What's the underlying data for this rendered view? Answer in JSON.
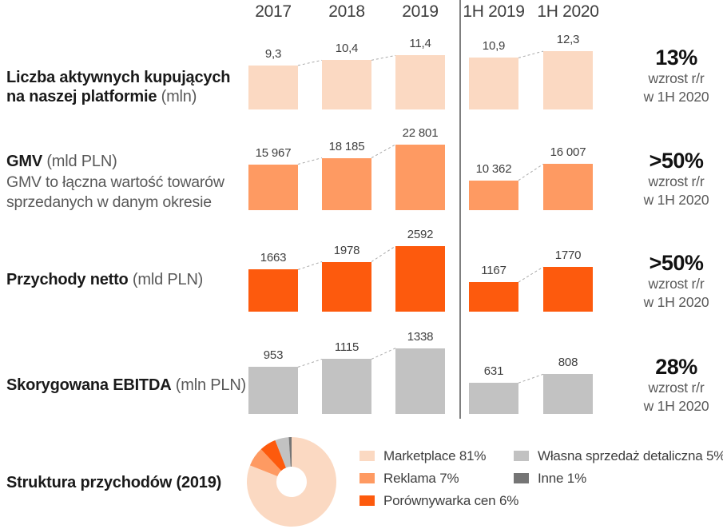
{
  "header": {
    "columns": [
      "2017",
      "2018",
      "2019",
      "1H 2019",
      "1H 2020"
    ]
  },
  "chart_data": [
    {
      "type": "bar",
      "id": "active-buyers",
      "title_bold": "Liczba aktywnych kupujących na naszej platformie",
      "title_unit": " (mln)",
      "subtitle": "",
      "categories": [
        "2017",
        "2018",
        "2019",
        "1H 2019",
        "1H 2020"
      ],
      "values": [
        9.3,
        10.4,
        11.4,
        10.9,
        12.3
      ],
      "value_labels": [
        "9,3",
        "10,4",
        "11,4",
        "10,9",
        "12,3"
      ],
      "bar_color": "#fbd9c2",
      "growth_pct": "13%",
      "growth_line1": "wzrost r/r",
      "growth_line2": "w 1H 2020"
    },
    {
      "type": "bar",
      "id": "gmv",
      "title_bold": "GMV",
      "title_unit": " (mld PLN)",
      "subtitle": "GMV to łączna wartość towarów sprzedanych w danym okresie",
      "categories": [
        "2017",
        "2018",
        "2019",
        "1H 2019",
        "1H 2020"
      ],
      "values": [
        15967,
        18185,
        22801,
        10362,
        16007
      ],
      "value_labels": [
        "15 967",
        "18 185",
        "22 801",
        "10 362",
        "16 007"
      ],
      "bar_color": "#fe9a62",
      "growth_pct": ">50%",
      "growth_line1": "wzrost r/r",
      "growth_line2": "w 1H 2020"
    },
    {
      "type": "bar",
      "id": "net-revenue",
      "title_bold": "Przychody netto",
      "title_unit": " (mld PLN)",
      "subtitle": "",
      "categories": [
        "2017",
        "2018",
        "2019",
        "1H 2019",
        "1H 2020"
      ],
      "values": [
        1663,
        1978,
        2592,
        1167,
        1770
      ],
      "value_labels": [
        "1663",
        "1978",
        "2592",
        "1167",
        "1770"
      ],
      "bar_color": "#fd5a0d",
      "growth_pct": ">50%",
      "growth_line1": "wzrost r/r",
      "growth_line2": "w 1H 2020"
    },
    {
      "type": "bar",
      "id": "adjusted-ebitda",
      "title_bold": "Skorygowana EBITDA",
      "title_unit": " (mln PLN)",
      "subtitle": "",
      "categories": [
        "2017",
        "2018",
        "2019",
        "1H 2019",
        "1H 2020"
      ],
      "values": [
        953,
        1115,
        1338,
        631,
        808
      ],
      "value_labels": [
        "953",
        "1115",
        "1338",
        "631",
        "808"
      ],
      "bar_color": "#c2c2c2",
      "growth_pct": "28%",
      "growth_line1": "wzrost r/r",
      "growth_line2": "w 1H 2020"
    },
    {
      "type": "pie",
      "id": "revenue-structure",
      "title_bold": "Struktura przychodów (2019)",
      "categories": [
        "Marketplace",
        "Reklama",
        "Porównywarka cen",
        "Własna sprzedaż detaliczna",
        "Inne"
      ],
      "values": [
        81,
        7,
        6,
        5,
        1
      ],
      "legend": [
        "Marketplace 81%",
        "Reklama 7%",
        "Porównywarka cen 6%",
        "Własna sprzedaż detaliczna 5%",
        "Inne 1%"
      ],
      "colors": [
        "#fbd9c2",
        "#fe9a62",
        "#fd5a0d",
        "#c2c2c2",
        "#757575"
      ],
      "legend_position": "right",
      "donut": true
    }
  ]
}
